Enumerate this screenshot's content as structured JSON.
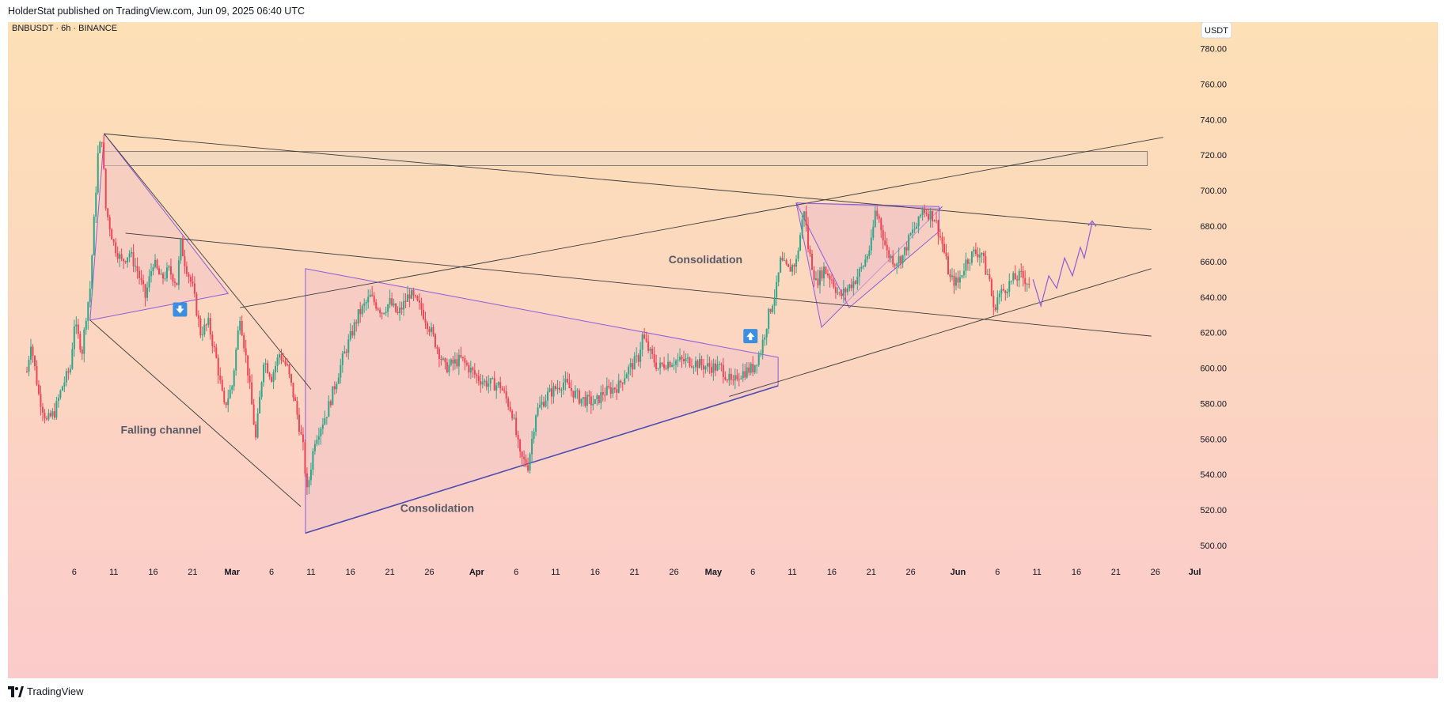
{
  "header": {
    "publish_line": "HolderStat published on TradingView.com, Jun 09, 2025 06:40 UTC"
  },
  "footer": {
    "logo_text": "TradingView"
  },
  "colors": {
    "bg_top": "#fde0b6",
    "bg_bottom": "#fbcbcb",
    "up_candle": "#2fa58a",
    "down_candle": "#ef4456",
    "pattern_line": "#8c5bdb",
    "trend_line": "#3a3a3a",
    "zone_fill": "#f1d8bf",
    "arrow_badge": "#3c8ee0"
  },
  "chart_data": {
    "type": "candlestick",
    "symbol_line": "BNBUSDT · 6h · BINANCE",
    "currency_label": "USDT",
    "ylim": [
      492,
      788
    ],
    "y_ticks": [
      "780.00",
      "760.00",
      "740.00",
      "720.00",
      "700.00",
      "680.00",
      "660.00",
      "640.00",
      "620.00",
      "600.00",
      "580.00",
      "560.00",
      "540.00",
      "520.00",
      "500.00"
    ],
    "x_ticks": [
      {
        "label": "6",
        "day": 6
      },
      {
        "label": "11",
        "day": 11
      },
      {
        "label": "16",
        "day": 16
      },
      {
        "label": "21",
        "day": 21
      },
      {
        "label": "Mar",
        "day": 26
      },
      {
        "label": "6",
        "day": 31
      },
      {
        "label": "11",
        "day": 36
      },
      {
        "label": "16",
        "day": 41
      },
      {
        "label": "21",
        "day": 46
      },
      {
        "label": "26",
        "day": 51
      },
      {
        "label": "Apr",
        "day": 57
      },
      {
        "label": "6",
        "day": 62
      },
      {
        "label": "11",
        "day": 67
      },
      {
        "label": "16",
        "day": 72
      },
      {
        "label": "21",
        "day": 77
      },
      {
        "label": "26",
        "day": 82
      },
      {
        "label": "May",
        "day": 87
      },
      {
        "label": "6",
        "day": 92
      },
      {
        "label": "11",
        "day": 97
      },
      {
        "label": "16",
        "day": 102
      },
      {
        "label": "21",
        "day": 107
      },
      {
        "label": "26",
        "day": 112
      },
      {
        "label": "Jun",
        "day": 118
      },
      {
        "label": "6",
        "day": 123
      },
      {
        "label": "11",
        "day": 128
      },
      {
        "label": "16",
        "day": 133
      },
      {
        "label": "21",
        "day": 138
      },
      {
        "label": "26",
        "day": 143
      },
      {
        "label": "Jul",
        "day": 148
      }
    ],
    "price_path": [
      [
        0,
        598
      ],
      [
        0.5,
        615
      ],
      [
        1.5,
        585
      ],
      [
        2.5,
        570
      ],
      [
        3.5,
        575
      ],
      [
        4.5,
        590
      ],
      [
        5.5,
        600
      ],
      [
        6,
        625
      ],
      [
        7,
        610
      ],
      [
        7.5,
        630
      ],
      [
        8,
        645
      ],
      [
        9,
        720
      ],
      [
        9.5,
        730
      ],
      [
        10,
        690
      ],
      [
        11,
        670
      ],
      [
        12,
        660
      ],
      [
        13,
        665
      ],
      [
        14,
        655
      ],
      [
        15,
        640
      ],
      [
        16,
        660
      ],
      [
        17,
        650
      ],
      [
        18,
        655
      ],
      [
        19,
        648
      ],
      [
        19.5,
        670
      ],
      [
        20,
        660
      ],
      [
        21,
        645
      ],
      [
        22,
        620
      ],
      [
        23,
        625
      ],
      [
        24,
        605
      ],
      [
        25,
        578
      ],
      [
        26,
        590
      ],
      [
        27,
        630
      ],
      [
        28,
        598
      ],
      [
        29,
        560
      ],
      [
        30,
        605
      ],
      [
        31,
        595
      ],
      [
        32,
        608
      ],
      [
        33,
        600
      ],
      [
        34,
        580
      ],
      [
        35,
        555
      ],
      [
        35.5,
        530
      ],
      [
        36.5,
        560
      ],
      [
        38,
        575
      ],
      [
        40,
        605
      ],
      [
        42,
        630
      ],
      [
        43.5,
        640
      ],
      [
        45,
        632
      ],
      [
        46,
        637
      ],
      [
        47,
        630
      ],
      [
        48.5,
        642
      ],
      [
        50,
        633
      ],
      [
        51,
        623
      ],
      [
        53,
        600
      ],
      [
        55,
        605
      ],
      [
        57,
        595
      ],
      [
        58,
        592
      ],
      [
        60,
        590
      ],
      [
        61.5,
        575
      ],
      [
        62.5,
        550
      ],
      [
        63.5,
        545
      ],
      [
        64.5,
        575
      ],
      [
        66,
        585
      ],
      [
        68,
        592
      ],
      [
        70,
        583
      ],
      [
        72,
        580
      ],
      [
        73,
        586
      ],
      [
        75,
        590
      ],
      [
        76,
        598
      ],
      [
        77.5,
        606
      ],
      [
        78,
        618
      ],
      [
        79,
        608
      ],
      [
        80,
        600
      ],
      [
        81,
        603
      ],
      [
        82,
        604
      ],
      [
        84,
        604
      ],
      [
        86,
        601
      ],
      [
        88,
        600
      ],
      [
        89.5,
        590
      ],
      [
        90,
        596
      ],
      [
        92,
        600
      ],
      [
        93,
        610
      ],
      [
        94,
        630
      ],
      [
        95,
        645
      ],
      [
        95.5,
        660
      ],
      [
        96.5,
        655
      ],
      [
        97.5,
        660
      ],
      [
        98.5,
        690
      ],
      [
        99,
        668
      ],
      [
        100,
        648
      ],
      [
        101,
        656
      ],
      [
        102,
        650
      ],
      [
        103,
        640
      ],
      [
        104,
        645
      ],
      [
        105,
        650
      ],
      [
        106,
        658
      ],
      [
        107,
        670
      ],
      [
        107.5,
        688
      ],
      [
        108,
        684
      ],
      [
        109,
        665
      ],
      [
        110,
        660
      ],
      [
        111,
        663
      ],
      [
        112,
        675
      ],
      [
        113,
        682
      ],
      [
        113.5,
        690
      ],
      [
        114,
        688
      ],
      [
        115,
        685
      ],
      [
        116,
        670
      ],
      [
        117,
        650
      ],
      [
        118,
        648
      ],
      [
        119,
        660
      ],
      [
        120,
        665
      ],
      [
        121,
        665
      ],
      [
        121.5,
        655
      ],
      [
        122,
        650
      ],
      [
        122.5,
        632
      ],
      [
        123,
        640
      ],
      [
        124,
        645
      ],
      [
        125,
        650
      ],
      [
        126,
        652
      ],
      [
        127,
        648
      ]
    ],
    "projection_path": [
      [
        127.5,
        650
      ],
      [
        128.5,
        635
      ],
      [
        129.5,
        652
      ],
      [
        130.5,
        645
      ],
      [
        131.5,
        662
      ],
      [
        132.5,
        652
      ],
      [
        133.5,
        668
      ],
      [
        134,
        662
      ],
      [
        135,
        682
      ]
    ],
    "annotations": [
      {
        "text": "Falling channel",
        "day": 17,
        "price": 563
      },
      {
        "text": "Consolidation",
        "day": 52,
        "price": 519
      },
      {
        "text": "Consolidation",
        "day": 86,
        "price": 659
      }
    ]
  }
}
